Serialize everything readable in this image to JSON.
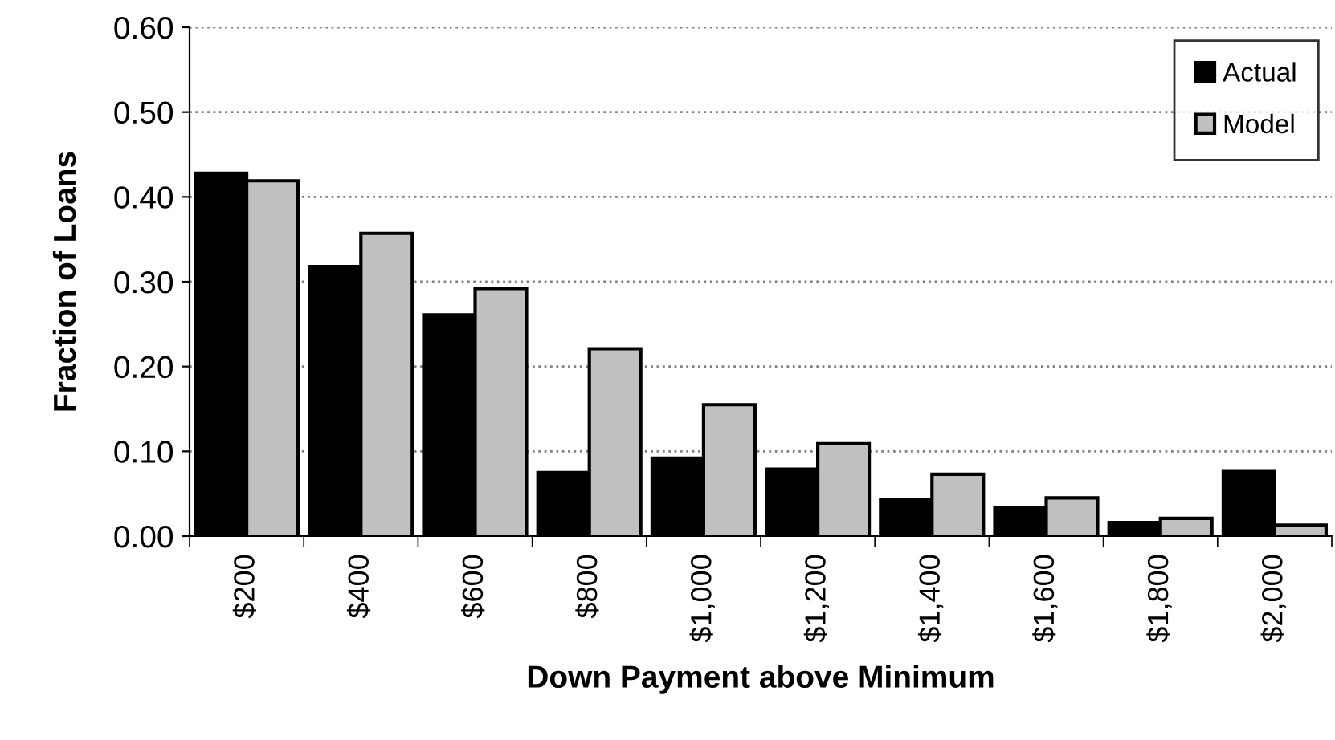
{
  "chart_data": {
    "type": "bar",
    "xlabel": "Down Payment above Minimum",
    "ylabel": "Fraction of Loans",
    "categories": [
      "$200",
      "$400",
      "$600",
      "$800",
      "$1,000",
      "$1,200",
      "$1,400",
      "$1,600",
      "$1,800",
      "$2,000"
    ],
    "series": [
      {
        "name": "Actual",
        "color": "#000000",
        "values": [
          0.428,
          0.318,
          0.261,
          0.075,
          0.092,
          0.079,
          0.043,
          0.034,
          0.016,
          0.077
        ]
      },
      {
        "name": "Model",
        "color": "#c0c0c0",
        "values": [
          0.419,
          0.357,
          0.292,
          0.221,
          0.155,
          0.109,
          0.073,
          0.045,
          0.021,
          0.013
        ]
      }
    ],
    "ylim": [
      0,
      0.6
    ],
    "yticks": [
      {
        "value": 0,
        "label": "0.00"
      },
      {
        "value": 0.1,
        "label": "0.10"
      },
      {
        "value": 0.2,
        "label": "0.20"
      },
      {
        "value": 0.3,
        "label": "0.30"
      },
      {
        "value": 0.4,
        "label": "0.40"
      },
      {
        "value": 0.5,
        "label": "0.50"
      },
      {
        "value": 0.6,
        "label": "0.60"
      }
    ],
    "grid": "y",
    "legend": "top right"
  }
}
